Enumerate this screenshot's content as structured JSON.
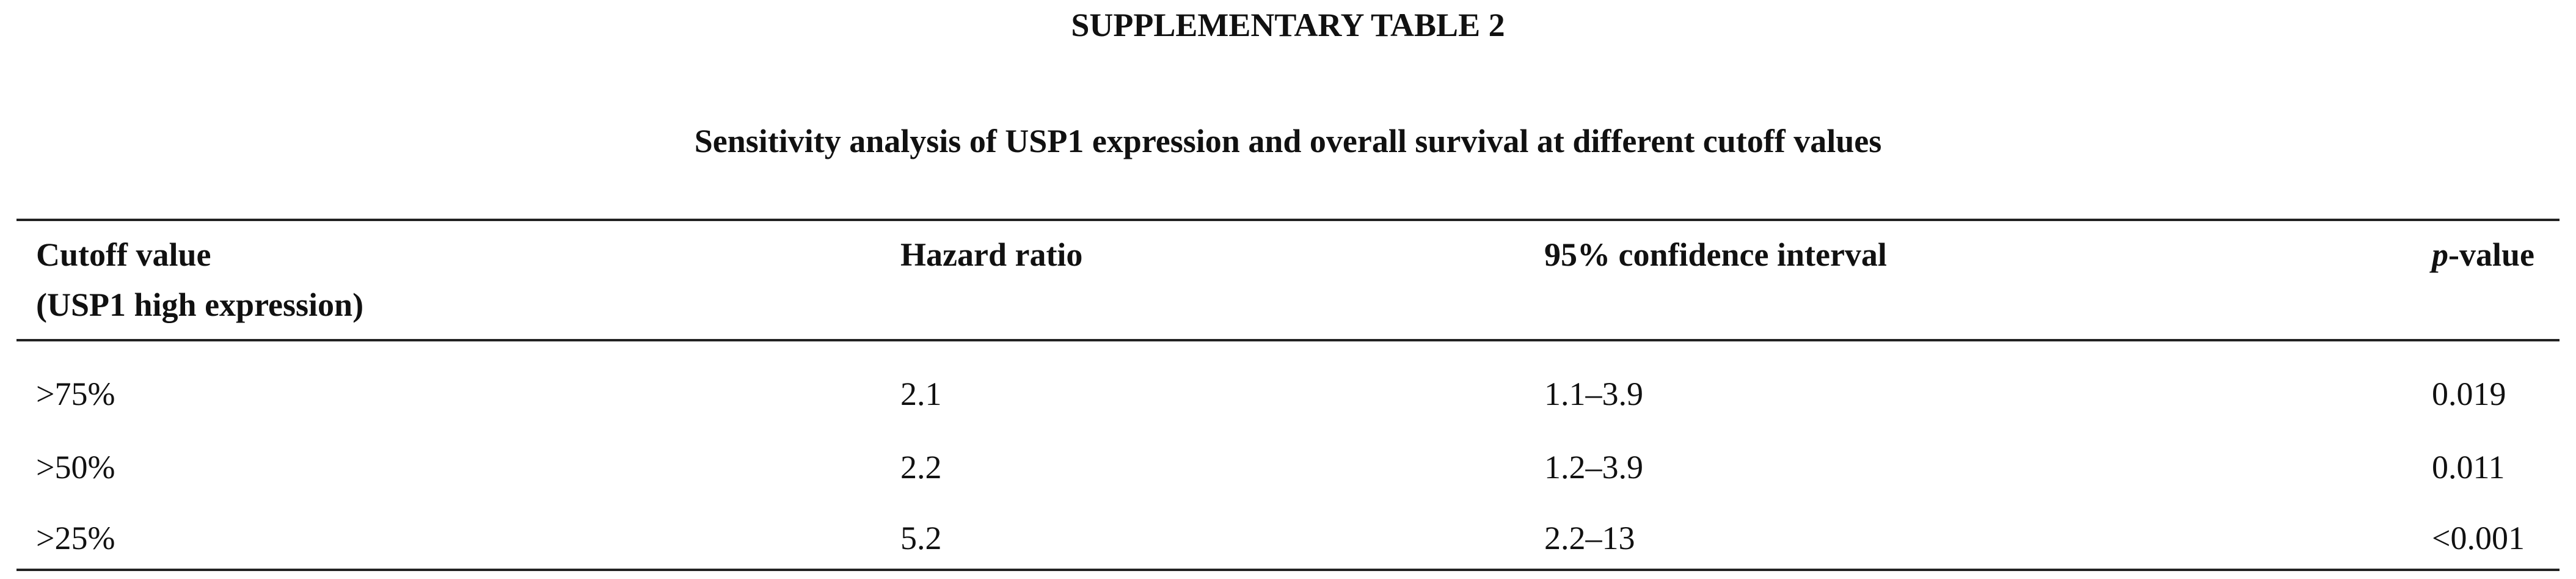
{
  "title": "SUPPLEMENTARY TABLE 2",
  "subtitle": "Sensitivity analysis of USP1 expression and overall survival at different cutoff values",
  "table": {
    "header": [
      {
        "lines": [
          "Cutoff value",
          "(USP1 high expression)"
        ]
      },
      {
        "text": "Hazard ratio"
      },
      {
        "text": "95% confidence interval"
      },
      {
        "italic": "p",
        "text": "-value"
      }
    ],
    "rows": [
      [
        ">75%",
        "2.1",
        "1.1–3.9",
        "0.019"
      ],
      [
        ">50%",
        "2.2",
        "1.2–3.9",
        "0.011"
      ],
      [
        ">25%",
        "5.2",
        "2.2–13",
        "<0.001"
      ]
    ]
  }
}
